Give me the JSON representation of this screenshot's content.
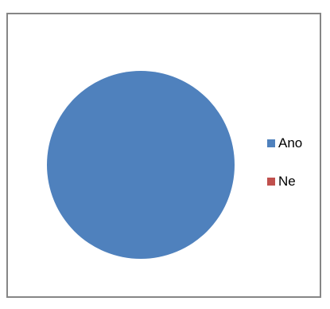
{
  "chart_data": {
    "type": "pie",
    "title": "",
    "categories": [
      "Ano",
      "Ne"
    ],
    "values": [
      100,
      0
    ],
    "colors": [
      "#4f81bd",
      "#c0504d"
    ],
    "legend_position": "right"
  }
}
